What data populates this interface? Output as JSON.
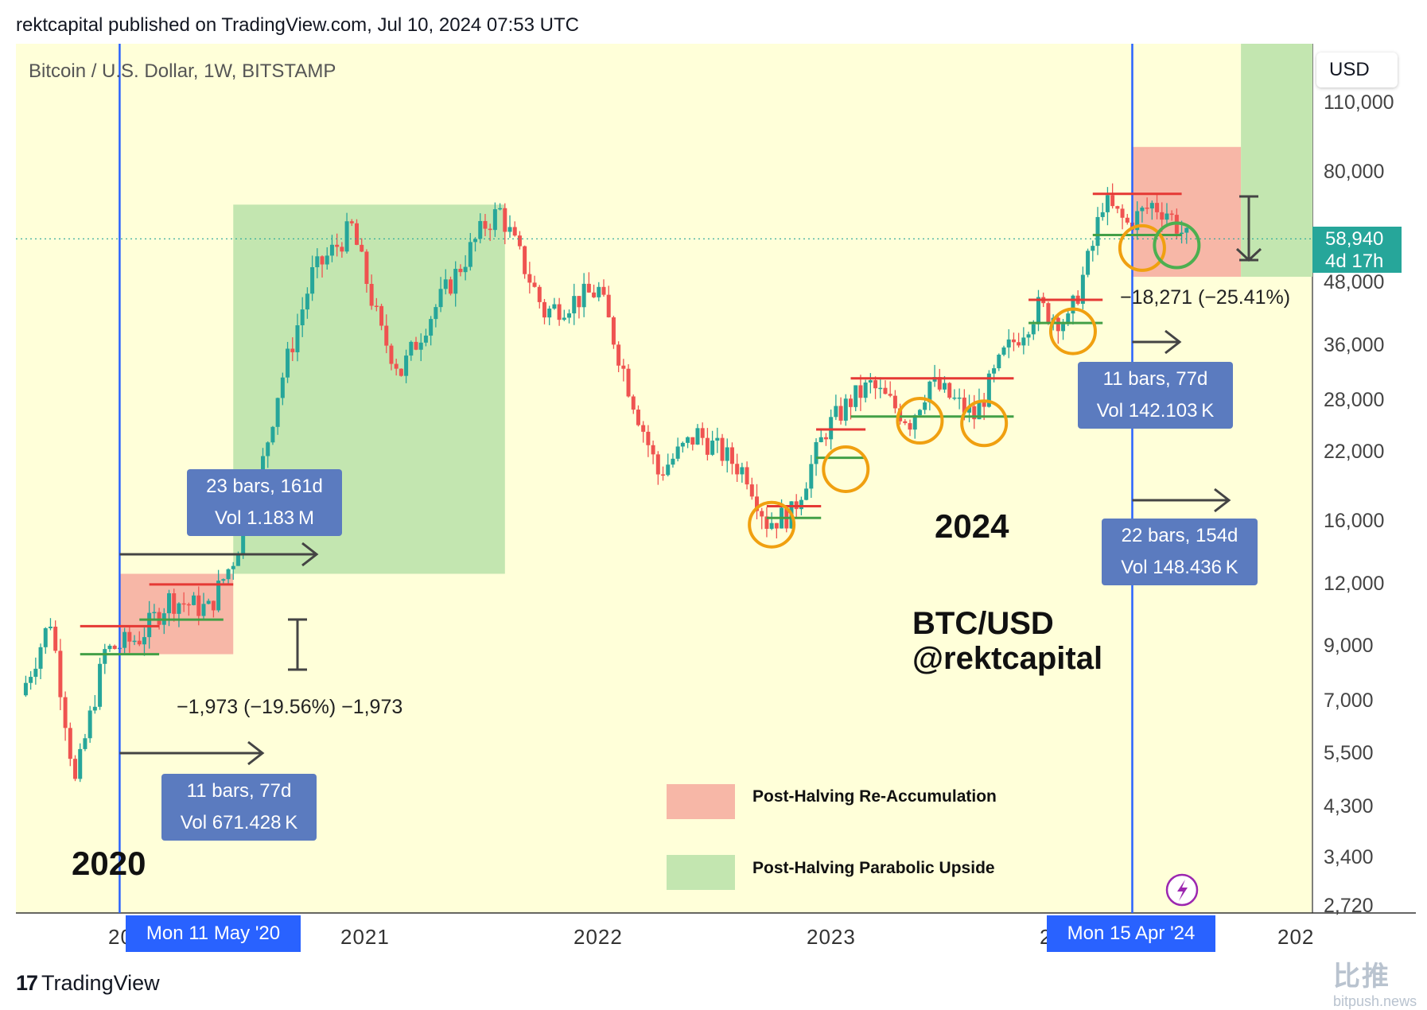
{
  "header": {
    "publisher_line": "rektcapital published on TradingView.com, Jul 10, 2024 07:53 UTC"
  },
  "chart_data": {
    "type": "candlestick",
    "symbol": "Bitcoin / U.S. Dollar, 1W, BITSTAMP",
    "currency": "USD",
    "y_scale": "log",
    "ylim": [
      2720,
      110000
    ],
    "y_ticks": [
      "110,000",
      "80,000",
      "48,000",
      "36,000",
      "28,000",
      "22,000",
      "16,000",
      "12,000",
      "9,000",
      "7,000",
      "5,500",
      "4,300",
      "3,400",
      "2,720"
    ],
    "x_ticks": [
      "20",
      "2021",
      "2022",
      "2023",
      "2",
      "202"
    ],
    "x_date_labels": [
      "Mon 11 May '20",
      "Mon 15 Apr '24"
    ],
    "current_price": "58,940",
    "countdown": "4d 17h",
    "price_path": [
      [
        "2019-12-30",
        7200
      ],
      [
        "2020-02-10",
        10200
      ],
      [
        "2020-03-16",
        4800
      ],
      [
        "2020-04-27",
        8800
      ],
      [
        "2020-06-15",
        9400
      ],
      [
        "2020-07-27",
        11200
      ],
      [
        "2020-09-21",
        10700
      ],
      [
        "2020-10-26",
        13500
      ],
      [
        "2020-11-30",
        19000
      ],
      [
        "2020-12-28",
        29000
      ],
      [
        "2021-02-15",
        50000
      ],
      [
        "2021-04-12",
        62000
      ],
      [
        "2021-05-24",
        38000
      ],
      [
        "2021-06-21",
        32000
      ],
      [
        "2021-07-26",
        40000
      ],
      [
        "2021-09-06",
        50000
      ],
      [
        "2021-10-18",
        63000
      ],
      [
        "2021-11-08",
        67000
      ],
      [
        "2022-01-10",
        42000
      ],
      [
        "2022-03-28",
        46500
      ],
      [
        "2022-05-09",
        30000
      ],
      [
        "2022-06-20",
        20000
      ],
      [
        "2022-08-15",
        24000
      ],
      [
        "2022-10-24",
        20000
      ],
      [
        "2022-11-21",
        16000
      ],
      [
        "2022-12-26",
        16600
      ],
      [
        "2023-02-13",
        24500
      ],
      [
        "2023-03-20",
        28000
      ],
      [
        "2023-04-17",
        30000
      ],
      [
        "2023-06-12",
        25500
      ],
      [
        "2023-07-10",
        30500
      ],
      [
        "2023-09-11",
        26000
      ],
      [
        "2023-10-23",
        34500
      ],
      [
        "2023-12-11",
        43000
      ],
      [
        "2024-01-22",
        40000
      ],
      [
        "2024-02-26",
        57000
      ],
      [
        "2024-03-11",
        70000
      ],
      [
        "2024-04-15",
        63000
      ],
      [
        "2024-05-20",
        69000
      ],
      [
        "2024-06-10",
        67000
      ],
      [
        "2024-07-08",
        58940
      ]
    ],
    "annotations": {
      "range_2020": {
        "label_line1": "23 bars, 161d",
        "label_line2": "Vol 1.183 M"
      },
      "range_2020_short": {
        "label_line1": "11 bars, 77d",
        "label_line2": "Vol 671.428 K"
      },
      "drawdown_2020": "−1,973 (−19.56%) −1,973",
      "range_2024_short": {
        "label_line1": "11 bars, 77d",
        "label_line2": "Vol 142.103 K"
      },
      "range_2024_long": {
        "label_line1": "22 bars, 154d",
        "label_line2": "Vol 148.436 K"
      },
      "drawdown_2024": "−18,271 (−25.41%)"
    },
    "legend": [
      {
        "label": "Post-Halving Re-Accumulation",
        "color": "#f7b7a7"
      },
      {
        "label": "Post-Halving Parabolic Upside",
        "color": "#c3e6b0"
      }
    ],
    "texts": {
      "year_left": "2020",
      "year_right": "2024",
      "brand_line1": "BTC/USD",
      "brand_line2": "@rektcapital"
    },
    "colors": {
      "background": "#ffffd9",
      "up": "#26a69a",
      "down": "#ef5350",
      "halving_line": "#2962ff",
      "circle": "#f0a010",
      "circle_green": "#4caf50"
    }
  },
  "footer": {
    "brand": "TradingView",
    "watermark_cn": "比推",
    "watermark_url": "bitpush.news"
  }
}
